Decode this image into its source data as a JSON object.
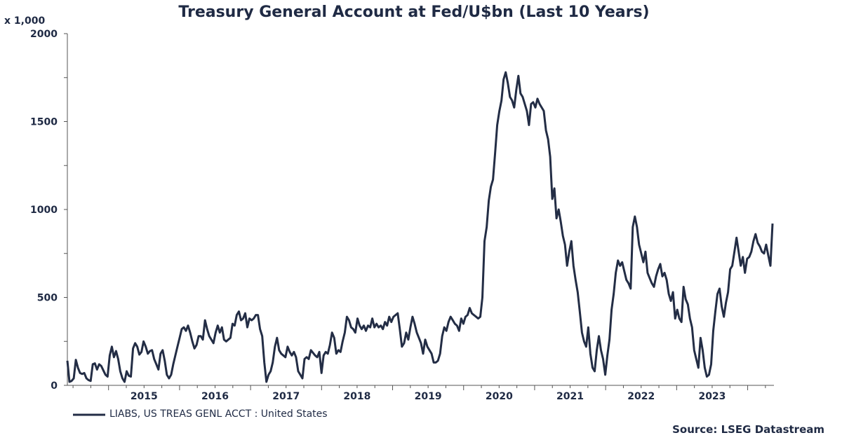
{
  "chart_data": {
    "type": "line",
    "title": "Treasury General Account at Fed/U$bn (Last 10 Years)",
    "y_unit_label": "x 1,000",
    "xlabel": "",
    "ylabel": "",
    "xlim": [
      2014.42,
      2024.37
    ],
    "ylim": [
      0,
      2000
    ],
    "y_ticks": [
      "0",
      "500",
      "1000",
      "1500",
      "2000"
    ],
    "y_tick_values": [
      0,
      500,
      1000,
      1500,
      2000
    ],
    "x_tick_labels": [
      "2015",
      "2016",
      "2017",
      "2018",
      "2019",
      "2020",
      "2021",
      "2022",
      "2023"
    ],
    "grid": false,
    "legend_position": "bottom-left",
    "series": [
      {
        "name": "LIABS, US TREAS GENL ACCT : United States",
        "color": "#232d45",
        "values": [
          140,
          20,
          25,
          40,
          145,
          100,
          70,
          65,
          70,
          40,
          30,
          25,
          120,
          125,
          90,
          120,
          110,
          85,
          60,
          50,
          170,
          220,
          160,
          195,
          150,
          80,
          40,
          20,
          80,
          55,
          50,
          210,
          240,
          220,
          175,
          190,
          250,
          220,
          180,
          195,
          200,
          150,
          120,
          90,
          180,
          200,
          140,
          60,
          40,
          60,
          120,
          170,
          220,
          270,
          320,
          330,
          310,
          340,
          300,
          250,
          210,
          230,
          280,
          280,
          260,
          370,
          320,
          280,
          260,
          240,
          300,
          340,
          300,
          330,
          260,
          250,
          260,
          270,
          350,
          340,
          400,
          420,
          370,
          380,
          410,
          330,
          380,
          370,
          380,
          400,
          400,
          320,
          280,
          130,
          20,
          60,
          80,
          130,
          220,
          270,
          200,
          180,
          170,
          160,
          220,
          190,
          170,
          190,
          160,
          80,
          60,
          40,
          150,
          160,
          150,
          200,
          185,
          170,
          160,
          190,
          70,
          170,
          190,
          180,
          230,
          300,
          270,
          180,
          200,
          190,
          250,
          300,
          390,
          370,
          330,
          320,
          300,
          380,
          340,
          320,
          340,
          310,
          340,
          330,
          380,
          330,
          350,
          330,
          340,
          320,
          360,
          340,
          390,
          360,
          390,
          400,
          410,
          320,
          220,
          240,
          300,
          260,
          330,
          390,
          350,
          300,
          270,
          240,
          180,
          260,
          220,
          200,
          180,
          130,
          130,
          140,
          180,
          280,
          330,
          310,
          360,
          390,
          370,
          350,
          340,
          310,
          380,
          350,
          390,
          400,
          440,
          410,
          400,
          390,
          380,
          390,
          500,
          820,
          900,
          1050,
          1130,
          1170,
          1320,
          1480,
          1560,
          1620,
          1740,
          1780,
          1720,
          1640,
          1620,
          1580,
          1680,
          1760,
          1660,
          1640,
          1600,
          1560,
          1480,
          1600,
          1610,
          1580,
          1630,
          1600,
          1580,
          1560,
          1450,
          1400,
          1300,
          1060,
          1120,
          950,
          1000,
          930,
          850,
          800,
          680,
          760,
          820,
          680,
          600,
          530,
          420,
          300,
          250,
          220,
          330,
          180,
          100,
          80,
          200,
          280,
          200,
          150,
          60,
          170,
          260,
          430,
          520,
          640,
          710,
          680,
          700,
          650,
          600,
          580,
          550,
          900,
          960,
          900,
          800,
          750,
          700,
          760,
          640,
          610,
          580,
          560,
          620,
          660,
          690,
          620,
          640,
          600,
          520,
          480,
          530,
          380,
          430,
          380,
          360,
          560,
          490,
          460,
          380,
          330,
          200,
          150,
          100,
          270,
          200,
          100,
          50,
          60,
          120,
          310,
          420,
          520,
          550,
          450,
          390,
          470,
          530,
          660,
          680,
          760,
          840,
          760,
          680,
          730,
          640,
          720,
          730,
          760,
          820,
          860,
          810,
          790,
          760,
          750,
          800,
          740,
          680,
          920
        ]
      }
    ],
    "source": "Source: LSEG Datastream"
  }
}
